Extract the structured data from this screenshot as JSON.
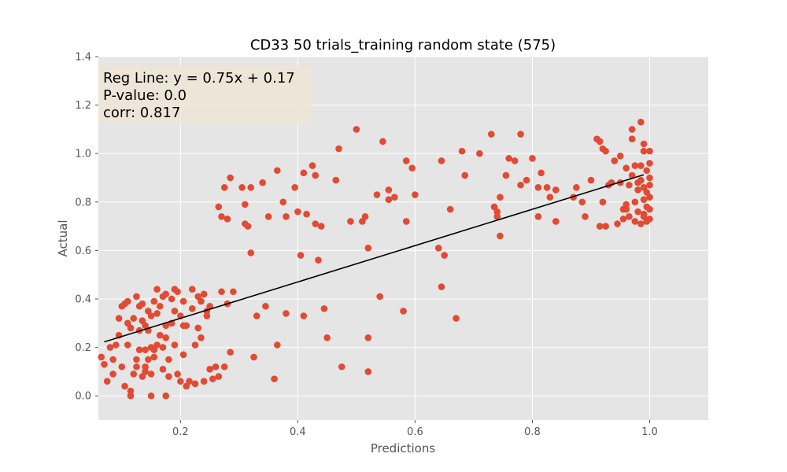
{
  "chart_data": {
    "type": "scatter",
    "title": "CD33 50 trials_training random state (575)",
    "xlabel": "Predictions",
    "ylabel": "Actual",
    "xlim": [
      0.06,
      1.1
    ],
    "ylim": [
      -0.1,
      1.4
    ],
    "xticks": [
      0.2,
      0.4,
      0.6,
      0.8,
      1.0
    ],
    "xtick_labels": [
      "0.2",
      "0.4",
      "0.6",
      "0.8",
      "1.0"
    ],
    "yticks": [
      0.0,
      0.2,
      0.4,
      0.6,
      0.8,
      1.0,
      1.2,
      1.4
    ],
    "ytick_labels": [
      "0.0",
      "0.2",
      "0.4",
      "0.6",
      "0.8",
      "1.0",
      "1.2",
      "1.4"
    ],
    "grid": true,
    "style": "ggplot",
    "colors": {
      "points": "#e24a33",
      "regression": "#000000",
      "panel": "#e5e5e5",
      "grid": "#ffffff",
      "annotation_box": "#efe6d6"
    },
    "annotation": {
      "lines": [
        "Reg Line: y = 0.75x + 0.17",
        "P-value: 0.0",
        "corr: 0.817"
      ],
      "position": "top-left"
    },
    "regression": {
      "slope": 0.75,
      "intercept": 0.17,
      "x_range": [
        0.07,
        0.99
      ]
    },
    "points": [
      [
        0.065,
        0.16
      ],
      [
        0.07,
        0.13
      ],
      [
        0.075,
        0.06
      ],
      [
        0.08,
        0.2
      ],
      [
        0.085,
        0.15
      ],
      [
        0.085,
        0.09
      ],
      [
        0.09,
        0.21
      ],
      [
        0.095,
        0.25
      ],
      [
        0.095,
        0.32
      ],
      [
        0.1,
        0.37
      ],
      [
        0.1,
        0.12
      ],
      [
        0.105,
        0.04
      ],
      [
        0.105,
        0.38
      ],
      [
        0.11,
        0.3
      ],
      [
        0.11,
        0.39
      ],
      [
        0.11,
        0.21
      ],
      [
        0.115,
        0.02
      ],
      [
        0.115,
        0.0
      ],
      [
        0.115,
        0.28
      ],
      [
        0.12,
        0.09
      ],
      [
        0.12,
        0.32
      ],
      [
        0.125,
        0.15
      ],
      [
        0.125,
        0.41
      ],
      [
        0.125,
        0.12
      ],
      [
        0.13,
        0.27
      ],
      [
        0.13,
        0.19
      ],
      [
        0.13,
        0.37
      ],
      [
        0.135,
        0.08
      ],
      [
        0.135,
        0.38
      ],
      [
        0.135,
        0.31
      ],
      [
        0.14,
        0.19
      ],
      [
        0.14,
        0.29
      ],
      [
        0.14,
        0.1
      ],
      [
        0.14,
        0.12
      ],
      [
        0.145,
        0.27
      ],
      [
        0.145,
        0.35
      ],
      [
        0.145,
        0.15
      ],
      [
        0.15,
        0.2
      ],
      [
        0.15,
        0.33
      ],
      [
        0.15,
        0.09
      ],
      [
        0.15,
        0.0
      ],
      [
        0.155,
        0.19
      ],
      [
        0.155,
        0.39
      ],
      [
        0.155,
        0.16
      ],
      [
        0.16,
        0.44
      ],
      [
        0.16,
        0.21
      ],
      [
        0.16,
        0.34
      ],
      [
        0.165,
        0.25
      ],
      [
        0.165,
        0.37
      ],
      [
        0.17,
        0.41
      ],
      [
        0.17,
        0.11
      ],
      [
        0.17,
        0.2
      ],
      [
        0.175,
        0.0
      ],
      [
        0.175,
        0.29
      ],
      [
        0.175,
        0.42
      ],
      [
        0.175,
        0.24
      ],
      [
        0.18,
        0.08
      ],
      [
        0.18,
        0.15
      ],
      [
        0.185,
        0.4
      ],
      [
        0.185,
        0.3
      ],
      [
        0.19,
        0.44
      ],
      [
        0.19,
        0.35
      ],
      [
        0.19,
        0.21
      ],
      [
        0.195,
        0.09
      ],
      [
        0.195,
        0.43
      ],
      [
        0.2,
        0.06
      ],
      [
        0.2,
        0.33
      ],
      [
        0.205,
        0.39
      ],
      [
        0.205,
        0.29
      ],
      [
        0.205,
        0.17
      ],
      [
        0.21,
        0.04
      ],
      [
        0.21,
        0.29
      ],
      [
        0.215,
        0.06
      ],
      [
        0.22,
        0.36
      ],
      [
        0.22,
        0.44
      ],
      [
        0.225,
        0.05
      ],
      [
        0.225,
        0.21
      ],
      [
        0.23,
        0.41
      ],
      [
        0.23,
        0.28
      ],
      [
        0.235,
        0.39
      ],
      [
        0.235,
        0.24
      ],
      [
        0.24,
        0.06
      ],
      [
        0.24,
        0.42
      ],
      [
        0.245,
        0.35
      ],
      [
        0.245,
        0.33
      ],
      [
        0.25,
        0.11
      ],
      [
        0.25,
        0.37
      ],
      [
        0.255,
        0.07
      ],
      [
        0.26,
        0.12
      ],
      [
        0.265,
        0.78
      ],
      [
        0.265,
        0.08
      ],
      [
        0.27,
        0.74
      ],
      [
        0.27,
        0.43
      ],
      [
        0.275,
        0.86
      ],
      [
        0.275,
        0.12
      ],
      [
        0.28,
        0.73
      ],
      [
        0.28,
        0.38
      ],
      [
        0.285,
        0.9
      ],
      [
        0.285,
        0.18
      ],
      [
        0.29,
        0.43
      ],
      [
        0.305,
        0.86
      ],
      [
        0.31,
        0.79
      ],
      [
        0.31,
        0.71
      ],
      [
        0.315,
        0.7
      ],
      [
        0.32,
        0.86
      ],
      [
        0.32,
        0.59
      ],
      [
        0.325,
        0.16
      ],
      [
        0.33,
        0.33
      ],
      [
        0.34,
        0.88
      ],
      [
        0.345,
        0.37
      ],
      [
        0.35,
        0.74
      ],
      [
        0.36,
        0.07
      ],
      [
        0.365,
        0.93
      ],
      [
        0.365,
        0.21
      ],
      [
        0.375,
        0.8
      ],
      [
        0.38,
        0.34
      ],
      [
        0.38,
        0.74
      ],
      [
        0.395,
        0.86
      ],
      [
        0.4,
        0.76
      ],
      [
        0.405,
        0.58
      ],
      [
        0.41,
        0.92
      ],
      [
        0.41,
        0.33
      ],
      [
        0.415,
        0.75
      ],
      [
        0.425,
        0.95
      ],
      [
        0.43,
        0.91
      ],
      [
        0.43,
        0.71
      ],
      [
        0.435,
        0.56
      ],
      [
        0.44,
        0.7
      ],
      [
        0.445,
        0.36
      ],
      [
        0.45,
        0.24
      ],
      [
        0.465,
        0.89
      ],
      [
        0.47,
        1.02
      ],
      [
        0.475,
        0.12
      ],
      [
        0.49,
        0.72
      ],
      [
        0.5,
        1.1
      ],
      [
        0.51,
        0.72
      ],
      [
        0.515,
        0.74
      ],
      [
        0.52,
        0.61
      ],
      [
        0.52,
        0.24
      ],
      [
        0.52,
        0.1
      ],
      [
        0.535,
        0.83
      ],
      [
        0.54,
        0.41
      ],
      [
        0.545,
        1.05
      ],
      [
        0.555,
        0.85
      ],
      [
        0.555,
        0.81
      ],
      [
        0.565,
        0.82
      ],
      [
        0.58,
        0.35
      ],
      [
        0.585,
        0.97
      ],
      [
        0.585,
        0.72
      ],
      [
        0.595,
        0.94
      ],
      [
        0.6,
        0.83
      ],
      [
        0.64,
        0.61
      ],
      [
        0.645,
        0.97
      ],
      [
        0.645,
        0.45
      ],
      [
        0.65,
        0.58
      ],
      [
        0.66,
        0.77
      ],
      [
        0.67,
        0.32
      ],
      [
        0.68,
        1.01
      ],
      [
        0.685,
        0.91
      ],
      [
        0.71,
        1.0
      ],
      [
        0.73,
        1.08
      ],
      [
        0.735,
        0.78
      ],
      [
        0.74,
        0.74
      ],
      [
        0.74,
        0.76
      ],
      [
        0.745,
        0.66
      ],
      [
        0.745,
        0.82
      ],
      [
        0.755,
        0.91
      ],
      [
        0.76,
        0.98
      ],
      [
        0.77,
        0.97
      ],
      [
        0.78,
        1.08
      ],
      [
        0.78,
        0.87
      ],
      [
        0.79,
        0.89
      ],
      [
        0.8,
        0.98
      ],
      [
        0.81,
        0.86
      ],
      [
        0.81,
        0.74
      ],
      [
        0.815,
        0.92
      ],
      [
        0.825,
        0.86
      ],
      [
        0.83,
        0.82
      ],
      [
        0.84,
        0.72
      ],
      [
        0.84,
        0.85
      ],
      [
        0.87,
        0.82
      ],
      [
        0.875,
        0.86
      ],
      [
        0.885,
        0.8
      ],
      [
        0.89,
        0.74
      ],
      [
        0.9,
        0.89
      ],
      [
        0.91,
        1.06
      ],
      [
        0.915,
        0.7
      ],
      [
        0.915,
        1.05
      ],
      [
        0.92,
        1.02
      ],
      [
        0.92,
        0.8
      ],
      [
        0.925,
        0.7
      ],
      [
        0.925,
        1.01
      ],
      [
        0.93,
        0.87
      ],
      [
        0.935,
        0.88
      ],
      [
        0.94,
        0.97
      ],
      [
        0.945,
        0.71
      ],
      [
        0.95,
        0.88
      ],
      [
        0.95,
        0.99
      ],
      [
        0.955,
        0.77
      ],
      [
        0.955,
        0.73
      ],
      [
        0.96,
        0.94
      ],
      [
        0.96,
        0.79
      ],
      [
        0.965,
        0.74
      ],
      [
        0.965,
        0.87
      ],
      [
        0.97,
        1.1
      ],
      [
        0.97,
        0.91
      ],
      [
        0.97,
        1.06
      ],
      [
        0.975,
        0.8
      ],
      [
        0.975,
        0.95
      ],
      [
        0.98,
        0.76
      ],
      [
        0.98,
        0.85
      ],
      [
        0.985,
        1.13
      ],
      [
        0.985,
        0.71
      ],
      [
        0.985,
        0.89
      ],
      [
        0.99,
        1.01
      ],
      [
        0.99,
        0.74
      ],
      [
        0.99,
        0.86
      ],
      [
        0.99,
        1.04
      ],
      [
        0.995,
        0.72
      ],
      [
        0.995,
        0.84
      ],
      [
        0.995,
        0.93
      ],
      [
        1.0,
        1.01
      ],
      [
        1.0,
        0.73
      ],
      [
        1.0,
        0.77
      ],
      [
        1.0,
        0.82
      ],
      [
        1.0,
        0.87
      ],
      [
        1.0,
        0.96
      ],
      [
        0.99,
        0.75
      ],
      [
        0.995,
        0.78
      ],
      [
        0.98,
        0.88
      ],
      [
        0.975,
        0.72
      ],
      [
        0.99,
        0.81
      ],
      [
        1.0,
        0.9
      ],
      [
        0.96,
        0.77
      ],
      [
        0.985,
        0.95
      ]
    ]
  }
}
